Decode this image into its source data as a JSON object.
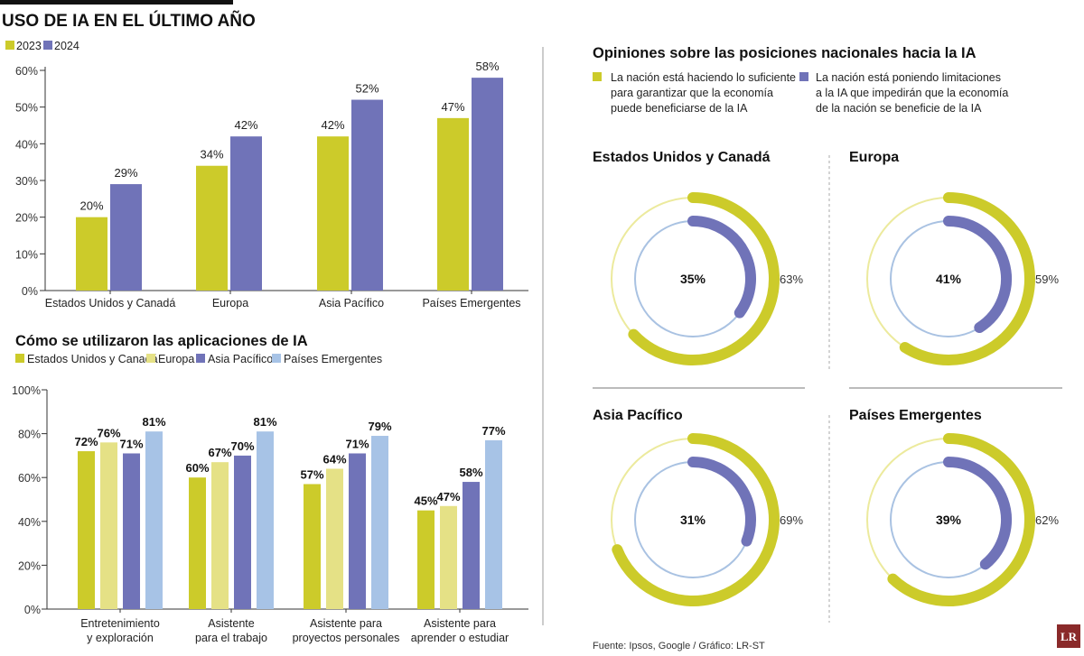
{
  "colors": {
    "y2023": "#cccb2a",
    "y2024": "#7073b8",
    "eu": "#e5e186",
    "ap": "#7073b8",
    "em": "#a7c3e6",
    "ring_outer_thin": "#ecea9d",
    "ring_inner_thin": "#a9c2e2",
    "ring_outer": "#cccb2a",
    "ring_inner": "#7073b8",
    "axis": "#333333",
    "logo": "#8a2a2a"
  },
  "chart_data": [
    {
      "id": "uso",
      "type": "bar",
      "title": "USO DE IA EN EL ÚLTIMO AÑO",
      "categories": [
        "Estados Unidos y Canadá",
        "Europa",
        "Asia Pacífico",
        "Países Emergentes"
      ],
      "series": [
        {
          "name": "2023",
          "values": [
            20,
            34,
            42,
            47
          ],
          "labels": [
            "20%",
            "34%",
            "42%",
            "47%"
          ]
        },
        {
          "name": "2024",
          "values": [
            29,
            42,
            52,
            58
          ],
          "labels": [
            "29%",
            "42%",
            "52%",
            "58%"
          ]
        }
      ],
      "ylim": [
        0,
        60
      ],
      "yticks": [
        "0%",
        "10%",
        "20%",
        "30%",
        "40%",
        "50%",
        "60%"
      ]
    },
    {
      "id": "apps",
      "type": "bar",
      "title": "Cómo se utilizaron las aplicaciones de IA",
      "categories": [
        [
          "Entretenimiento",
          "y exploración"
        ],
        [
          "Asistente",
          "para el trabajo"
        ],
        [
          "Asistente para",
          "proyectos personales"
        ],
        [
          "Asistente para",
          "aprender o estudiar"
        ]
      ],
      "series": [
        {
          "name": "Estados Unidos y Canadá",
          "values": [
            72,
            60,
            57,
            45
          ],
          "labels": [
            "72%",
            "60%",
            "57%",
            "45%"
          ]
        },
        {
          "name": "Europa",
          "values": [
            76,
            67,
            64,
            47
          ],
          "labels": [
            "76%",
            "67%",
            "64%",
            "47%"
          ]
        },
        {
          "name": "Asia Pacífico",
          "values": [
            71,
            70,
            71,
            58
          ],
          "labels": [
            "71%",
            "70%",
            "71%",
            "58%"
          ]
        },
        {
          "name": "Países Emergentes",
          "values": [
            81,
            81,
            79,
            77
          ],
          "labels": [
            "81%",
            "81%",
            "79%",
            "77%"
          ]
        }
      ],
      "ylim": [
        0,
        100
      ],
      "yticks": [
        "0%",
        "20%",
        "40%",
        "60%",
        "80%",
        "100%"
      ]
    },
    {
      "id": "opiniones",
      "type": "pie",
      "title": "Opiniones sobre las posiciones nacionales hacia la IA",
      "legend": [
        [
          "La nación está haciendo lo suficiente",
          "para garantizar que la economía",
          "puede beneficiarse de la IA"
        ],
        [
          "La nación está poniendo limitaciones",
          "a la IA que impedirán que la economía",
          "de la nación se beneficie de la IA"
        ]
      ],
      "regions": [
        {
          "name": "Estados Unidos y Canadá",
          "outer": 63,
          "outer_label": "63%",
          "inner": 35,
          "inner_label": "35%"
        },
        {
          "name": "Europa",
          "outer": 59,
          "outer_label": "59%",
          "inner": 41,
          "inner_label": "41%"
        },
        {
          "name": "Asia Pacífico",
          "outer": 69,
          "outer_label": "69%",
          "inner": 31,
          "inner_label": "31%"
        },
        {
          "name": "Países Emergentes",
          "outer": 62,
          "outer_label": "62%",
          "inner": 39,
          "inner_label": "39%"
        }
      ]
    }
  ],
  "source": "Fuente: Ipsos, Google / Gráfico: LR-ST",
  "logo": "LR"
}
